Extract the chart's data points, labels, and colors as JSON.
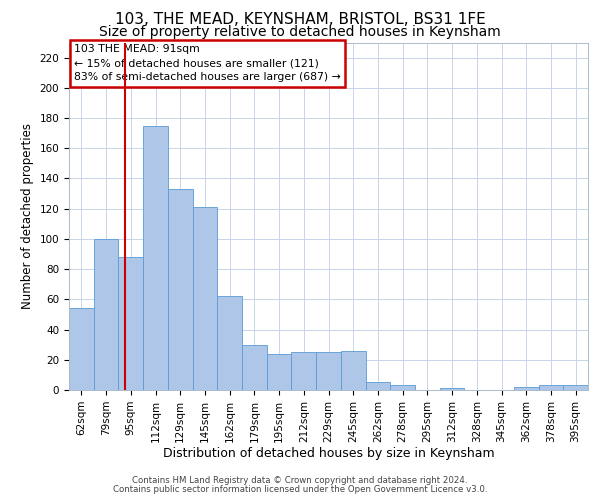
{
  "title": "103, THE MEAD, KEYNSHAM, BRISTOL, BS31 1FE",
  "subtitle": "Size of property relative to detached houses in Keynsham",
  "xlabel": "Distribution of detached houses by size in Keynsham",
  "ylabel": "Number of detached properties",
  "categories": [
    "62sqm",
    "79sqm",
    "95sqm",
    "112sqm",
    "129sqm",
    "145sqm",
    "162sqm",
    "179sqm",
    "195sqm",
    "212sqm",
    "229sqm",
    "245sqm",
    "262sqm",
    "278sqm",
    "295sqm",
    "312sqm",
    "328sqm",
    "345sqm",
    "362sqm",
    "378sqm",
    "395sqm"
  ],
  "values": [
    54,
    100,
    88,
    175,
    133,
    121,
    62,
    30,
    24,
    25,
    25,
    26,
    5,
    3,
    0,
    1,
    0,
    0,
    2,
    3,
    3
  ],
  "bar_color": "#aec6e8",
  "bar_edge_color": "#5b9bd5",
  "background_color": "#ffffff",
  "grid_color": "#c8d4e8",
  "annotation_line_color": "#cc0000",
  "annotation_box_text": "103 THE MEAD: 91sqm\n← 15% of detached houses are smaller (121)\n83% of semi-detached houses are larger (687) →",
  "ylim": [
    0,
    230
  ],
  "yticks": [
    0,
    20,
    40,
    60,
    80,
    100,
    120,
    140,
    160,
    180,
    200,
    220
  ],
  "footer_line1": "Contains HM Land Registry data © Crown copyright and database right 2024.",
  "footer_line2": "Contains public sector information licensed under the Open Government Licence v3.0.",
  "title_fontsize": 11,
  "subtitle_fontsize": 10,
  "tick_fontsize": 7.5,
  "xlabel_fontsize": 9,
  "ylabel_fontsize": 8.5
}
